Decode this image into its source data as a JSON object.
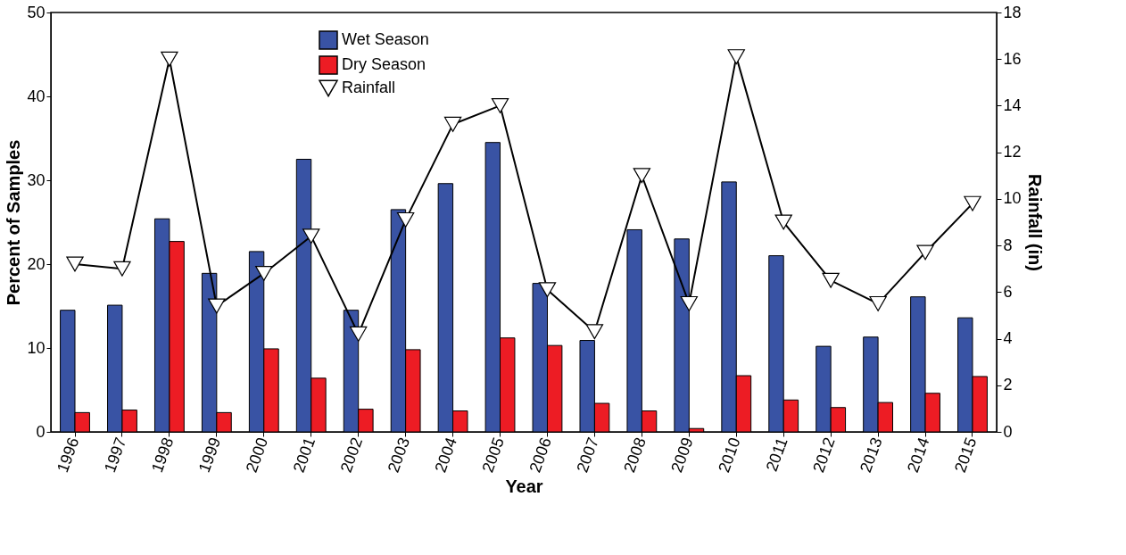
{
  "chart_data": {
    "type": "bar",
    "xlabel": "Year",
    "ylabel": "Percent of Samples",
    "y2label": "Rainfall (in)",
    "categories": [
      "1996",
      "1997",
      "1998",
      "1999",
      "2000",
      "2001",
      "2002",
      "2003",
      "2004",
      "2005",
      "2006",
      "2007",
      "2008",
      "2009",
      "2010",
      "2011",
      "2012",
      "2013",
      "2014",
      "2015"
    ],
    "series": [
      {
        "name": "Wet Season",
        "color": "#3953a4",
        "values": [
          14.5,
          15.1,
          25.4,
          18.9,
          21.5,
          32.5,
          14.5,
          26.5,
          29.6,
          34.5,
          17.7,
          10.9,
          24.1,
          23.0,
          29.8,
          21.0,
          10.2,
          11.3,
          16.1,
          13.6
        ]
      },
      {
        "name": "Dry Season",
        "color": "#ed1c24",
        "values": [
          2.3,
          2.6,
          22.7,
          2.3,
          9.9,
          6.4,
          2.7,
          9.8,
          2.5,
          11.2,
          10.3,
          3.4,
          2.5,
          0.4,
          6.7,
          3.8,
          2.9,
          3.5,
          4.6,
          6.6
        ]
      },
      {
        "name": "Rainfall",
        "type": "line",
        "axis": "y2",
        "color": "#000000",
        "marker": "triangle",
        "values": [
          7.2,
          7.0,
          16.0,
          5.4,
          6.8,
          8.4,
          4.2,
          9.1,
          13.2,
          14.0,
          6.1,
          4.3,
          11.0,
          5.5,
          16.1,
          9.0,
          6.5,
          5.5,
          7.7,
          9.8
        ]
      }
    ],
    "ylim": [
      0,
      50
    ],
    "yticks": [
      0,
      10,
      20,
      30,
      40,
      50
    ],
    "y2lim": [
      0,
      18
    ],
    "y2ticks": [
      0,
      2,
      4,
      6,
      8,
      10,
      12,
      14,
      16,
      18
    ],
    "grid": false,
    "legend": "top left"
  }
}
